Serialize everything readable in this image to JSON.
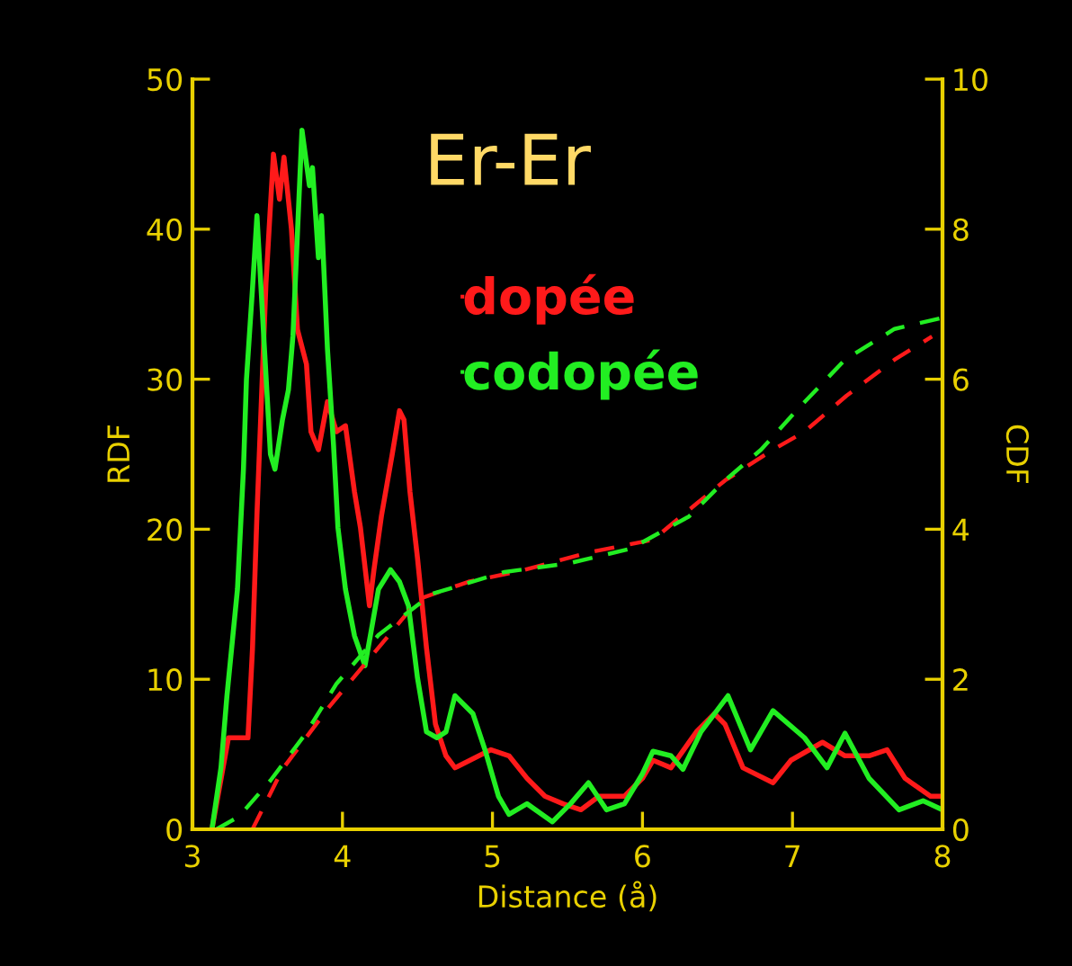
{
  "chart_data": {
    "type": "line",
    "title": "Er-Er",
    "xlabel": "Distance (å)",
    "ylabel": "RDF",
    "y2label": "CDF",
    "xlim": [
      3,
      8
    ],
    "xticks": [
      3,
      4,
      5,
      6,
      7,
      8
    ],
    "ylim": [
      0,
      50
    ],
    "yticks": [
      0,
      10,
      20,
      30,
      40,
      50
    ],
    "y2lim": [
      0,
      10
    ],
    "y2ticks": [
      0,
      2,
      4,
      6,
      8,
      10
    ],
    "grid": false,
    "legend": "top",
    "line_style": "solid",
    "marker": "none",
    "series": [
      {
        "name": "dopée",
        "color": "#ff1a1a",
        "x": [
          3.13,
          3.24,
          3.37,
          3.4,
          3.43,
          3.49,
          3.54,
          3.58,
          3.61,
          3.66,
          3.7,
          3.76,
          3.79,
          3.84,
          3.9,
          3.96,
          4.02,
          4.08,
          4.12,
          4.18,
          4.21,
          4.26,
          4.33,
          4.38,
          4.41,
          4.45,
          4.5,
          4.56,
          4.62,
          4.69,
          4.75,
          4.99,
          5.11,
          5.23,
          5.35,
          5.47,
          5.59,
          5.71,
          5.88,
          6.0,
          6.07,
          6.19,
          6.36,
          6.48,
          6.55,
          6.67,
          6.87,
          6.99,
          7.2,
          7.35,
          7.51,
          7.63,
          7.75,
          7.92,
          8.0
        ],
        "values": [
          0,
          6.1,
          6.1,
          12,
          21,
          36.4,
          45,
          42,
          44.8,
          40,
          33.3,
          31,
          26.5,
          25.3,
          28.5,
          26.5,
          26.9,
          22.5,
          20.1,
          14.9,
          17.3,
          20.9,
          24.9,
          27.9,
          27.3,
          22.5,
          18.1,
          12.1,
          7,
          4.9,
          4.1,
          5.3,
          4.9,
          3.4,
          2.2,
          1.7,
          1.3,
          2.2,
          2.2,
          3.4,
          4.6,
          4.1,
          6.5,
          7.7,
          7,
          4.1,
          3.1,
          4.6,
          5.8,
          4.9,
          4.9,
          5.3,
          3.4,
          2.2,
          2.2
        ]
      },
      {
        "name": "codopée",
        "color": "#22ee22",
        "x": [
          3.13,
          3.19,
          3.23,
          3.3,
          3.34,
          3.36,
          3.4,
          3.43,
          3.48,
          3.52,
          3.55,
          3.6,
          3.64,
          3.67,
          3.73,
          3.78,
          3.8,
          3.84,
          3.86,
          3.9,
          3.94,
          3.97,
          4.02,
          4.08,
          4.15,
          4.2,
          4.24,
          4.32,
          4.38,
          4.44,
          4.5,
          4.56,
          4.63,
          4.69,
          4.75,
          4.87,
          4.95,
          5.04,
          5.11,
          5.23,
          5.4,
          5.52,
          5.64,
          5.76,
          5.88,
          6.0,
          6.07,
          6.19,
          6.27,
          6.39,
          6.57,
          6.72,
          6.87,
          7.08,
          7.23,
          7.35,
          7.51,
          7.71,
          7.87,
          8.0
        ],
        "values": [
          0,
          4.1,
          8.9,
          16,
          24,
          30,
          36,
          40.9,
          32,
          25,
          24,
          27.3,
          29.3,
          32.9,
          46.6,
          42.9,
          44.1,
          38.1,
          40.9,
          32,
          25.7,
          20.1,
          16,
          12.9,
          10.9,
          13.7,
          16,
          17.3,
          16.5,
          14.9,
          10.1,
          6.5,
          6.1,
          6.5,
          8.9,
          7.7,
          5.3,
          2.2,
          1,
          1.7,
          0.5,
          1.7,
          3.1,
          1.3,
          1.7,
          3.7,
          5.2,
          4.9,
          4,
          6.5,
          8.9,
          5.3,
          7.9,
          6.1,
          4.1,
          6.4,
          3.4,
          1.3,
          1.9,
          1.3
        ]
      },
      {
        "axis": "y2",
        "color": "#ff1a1a",
        "line_style": "dashed",
        "x": [
          3.4,
          3.6,
          3.91,
          4.24,
          4.51,
          4.84,
          5.2,
          5.64,
          6.07,
          6.36,
          6.55,
          6.87,
          7.08,
          7.36,
          7.68,
          7.93
        ],
        "values": [
          0,
          0.8,
          1.63,
          2.42,
          3.07,
          3.3,
          3.45,
          3.69,
          3.86,
          4.34,
          4.65,
          5.06,
          5.3,
          5.78,
          6.26,
          6.57
        ]
      },
      {
        "axis": "y2",
        "color": "#22ee22",
        "line_style": "dashed",
        "x": [
          3.16,
          3.31,
          3.52,
          3.76,
          3.96,
          4.24,
          4.6,
          5.08,
          5.52,
          5.92,
          6.31,
          6.55,
          6.79,
          7.03,
          7.35,
          7.68,
          7.98
        ],
        "values": [
          0,
          0.17,
          0.65,
          1.29,
          1.94,
          2.59,
          3.14,
          3.43,
          3.55,
          3.74,
          4.17,
          4.65,
          5.06,
          5.59,
          6.26,
          6.67,
          6.81
        ]
      }
    ]
  }
}
